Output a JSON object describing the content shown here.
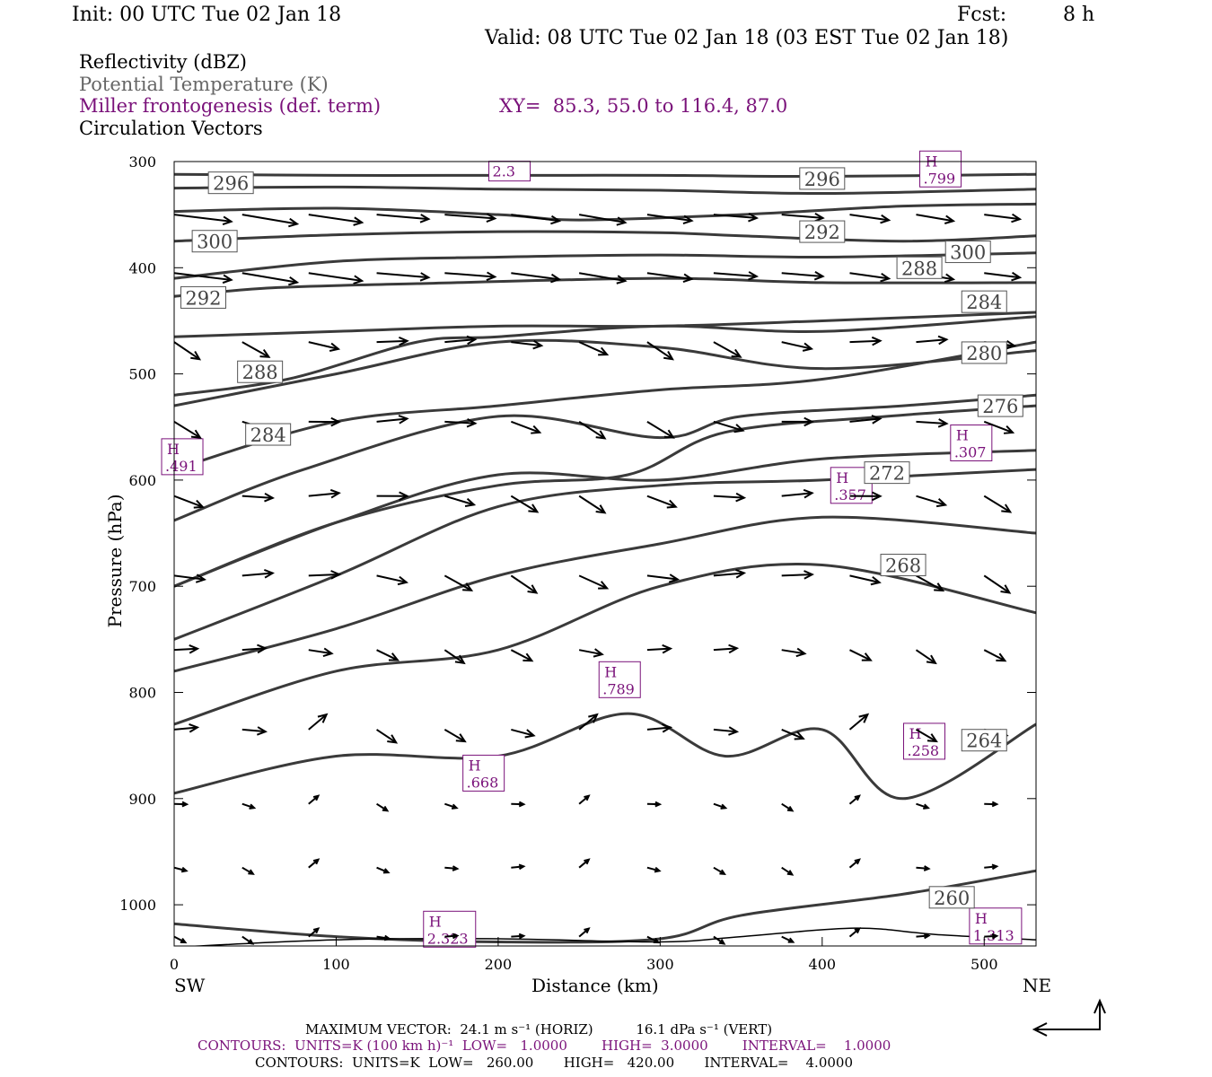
{
  "header": {
    "init": "Init: 00 UTC Tue 02 Jan 18",
    "fcst_label": "Fcst:",
    "fcst_value": "8 h",
    "valid": "Valid: 08 UTC Tue 02 Jan 18 (03 EST Tue 02 Jan 18)"
  },
  "legend": {
    "reflectivity": "Reflectivity (dBZ)",
    "theta": "Potential Temperature (K)",
    "frontogenesis": "Miller frontogenesis (def. term)",
    "xy": "XY=  85.3, 55.0 to 116.4, 87.0",
    "vectors": "Circulation Vectors"
  },
  "axes": {
    "ylabel": "Pressure (hPa)",
    "xlabel": "Distance (km)",
    "left_end": "SW",
    "right_end": "NE"
  },
  "footer": {
    "max_vector": "MAXIMUM VECTOR:  24.1 m s⁻¹ (HORIZ)          16.1 dPa s⁻¹ (VERT)",
    "contours_fronto": "CONTOURS:  UNITS=K (100 km h)⁻¹  LOW=   1.0000        HIGH=  3.0000        INTERVAL=    1.0000",
    "contours_theta": "CONTOURS:  UNITS=K  LOW=   260.00       HIGH=   420.00       INTERVAL=    4.0000"
  },
  "colors": {
    "theta": "#3a3a3a",
    "fronto": "#7a127a",
    "vector": "#000000"
  },
  "chart_data": {
    "type": "line",
    "x_range": [
      0,
      532
    ],
    "y_range": [
      300,
      1040
    ],
    "y_scale": "linear-inverted",
    "x_ticks": [
      0,
      100,
      200,
      300,
      400,
      500
    ],
    "y_ticks": [
      300,
      400,
      500,
      600,
      700,
      800,
      900,
      1000
    ],
    "theta_contours": [
      {
        "level": 300,
        "label_at": [
          [
            25,
            375
          ],
          [
            490,
            385
          ]
        ],
        "points": [
          [
            0,
            312
          ],
          [
            100,
            313
          ],
          [
            200,
            313
          ],
          [
            300,
            313
          ],
          [
            400,
            314
          ],
          [
            532,
            312
          ]
        ]
      },
      {
        "level": 300,
        "points": [
          [
            0,
            325
          ],
          [
            100,
            324
          ],
          [
            200,
            326
          ],
          [
            300,
            327
          ],
          [
            400,
            330
          ],
          [
            532,
            326
          ]
        ]
      },
      {
        "level": 300,
        "points": [
          [
            0,
            347
          ],
          [
            100,
            344
          ],
          [
            200,
            350
          ],
          [
            250,
            355
          ],
          [
            350,
            350
          ],
          [
            450,
            342
          ],
          [
            532,
            340
          ]
        ]
      },
      {
        "level": 300,
        "points": [
          [
            0,
            375
          ],
          [
            100,
            369
          ],
          [
            200,
            366
          ],
          [
            300,
            367
          ],
          [
            350,
            370
          ],
          [
            450,
            375
          ],
          [
            532,
            370
          ]
        ]
      },
      {
        "level": 296,
        "points": [
          [
            0,
            410
          ],
          [
            100,
            394
          ],
          [
            200,
            390
          ],
          [
            300,
            388
          ],
          [
            400,
            390
          ],
          [
            532,
            386
          ]
        ]
      },
      {
        "level": 296,
        "label_at": [
          [
            35,
            320
          ],
          [
            400,
            316
          ]
        ],
        "points": [
          [
            0,
            427
          ],
          [
            60,
            419
          ],
          [
            150,
            415
          ],
          [
            300,
            410
          ],
          [
            400,
            414
          ],
          [
            532,
            414
          ]
        ]
      },
      {
        "level": 292,
        "label_at": [
          [
            400,
            366
          ]
        ],
        "points": [
          [
            0,
            465
          ],
          [
            100,
            460
          ],
          [
            200,
            455
          ],
          [
            300,
            455
          ],
          [
            400,
            450
          ],
          [
            532,
            442
          ]
        ]
      },
      {
        "level": 292,
        "label_at": [
          [
            18,
            428
          ]
        ],
        "points": [
          [
            0,
            520
          ],
          [
            70,
            505
          ],
          [
            150,
            470
          ],
          [
            200,
            465
          ],
          [
            300,
            455
          ],
          [
            400,
            460
          ],
          [
            532,
            446
          ]
        ]
      },
      {
        "level": 288,
        "label_at": [
          [
            460,
            400
          ]
        ],
        "points": [
          [
            0,
            530
          ],
          [
            100,
            500
          ],
          [
            200,
            470
          ],
          [
            300,
            475
          ],
          [
            400,
            495
          ],
          [
            532,
            478
          ]
        ]
      },
      {
        "level": 288,
        "label_at": [
          [
            53,
            498
          ]
        ],
        "points": [
          [
            0,
            590
          ],
          [
            100,
            545
          ],
          [
            200,
            530
          ],
          [
            300,
            515
          ],
          [
            400,
            505
          ],
          [
            532,
            470
          ]
        ]
      },
      {
        "level": 284,
        "label_at": [
          [
            500,
            432
          ]
        ],
        "points": [
          [
            0,
            638
          ],
          [
            80,
            590
          ],
          [
            200,
            540
          ],
          [
            300,
            560
          ],
          [
            350,
            540
          ],
          [
            450,
            530
          ],
          [
            532,
            520
          ]
        ]
      },
      {
        "level": 284,
        "label_at": [
          [
            58,
            557
          ]
        ],
        "points": [
          [
            0,
            700
          ],
          [
            100,
            640
          ],
          [
            200,
            595
          ],
          [
            300,
            600
          ],
          [
            400,
            580
          ],
          [
            532,
            572
          ]
        ]
      },
      {
        "level": 280,
        "label_at": [
          [
            500,
            480
          ]
        ],
        "points": [
          [
            0,
            700
          ],
          [
            100,
            640
          ],
          [
            200,
            605
          ],
          [
            280,
            595
          ],
          [
            340,
            555
          ],
          [
            440,
            540
          ],
          [
            532,
            530
          ]
        ]
      },
      {
        "level": 276,
        "label_at": [
          [
            510,
            530
          ]
        ],
        "points": [
          [
            0,
            750
          ],
          [
            100,
            690
          ],
          [
            200,
            625
          ],
          [
            300,
            605
          ],
          [
            400,
            600
          ],
          [
            532,
            590
          ]
        ]
      },
      {
        "level": 272,
        "label_at": [
          [
            440,
            593
          ]
        ],
        "points": [
          [
            0,
            780
          ],
          [
            100,
            740
          ],
          [
            200,
            690
          ],
          [
            300,
            660
          ],
          [
            400,
            635
          ],
          [
            532,
            650
          ]
        ]
      },
      {
        "level": 268,
        "label_at": [
          [
            450,
            680
          ]
        ],
        "points": [
          [
            0,
            830
          ],
          [
            100,
            780
          ],
          [
            200,
            760
          ],
          [
            300,
            700
          ],
          [
            400,
            680
          ],
          [
            532,
            725
          ]
        ]
      },
      {
        "level": 264,
        "label_at": [
          [
            500,
            845
          ]
        ],
        "points": [
          [
            0,
            895
          ],
          [
            100,
            860
          ],
          [
            200,
            860
          ],
          [
            280,
            820
          ],
          [
            340,
            860
          ],
          [
            400,
            835
          ],
          [
            450,
            900
          ],
          [
            532,
            830
          ]
        ]
      },
      {
        "level": 260,
        "label_at": [
          [
            480,
            993
          ]
        ],
        "points": [
          [
            0,
            1018
          ],
          [
            100,
            1030
          ],
          [
            200,
            1035
          ],
          [
            300,
            1032
          ],
          [
            350,
            1010
          ],
          [
            450,
            990
          ],
          [
            532,
            968
          ]
        ]
      }
    ],
    "fronto_maxima": [
      {
        "label": "H",
        "value": ".491",
        "x": 5,
        "p": 578
      },
      {
        "label": "H",
        "value": ".799",
        "x": 473,
        "p": 307
      },
      {
        "label": "H",
        "value": ".307",
        "x": 492,
        "p": 565
      },
      {
        "label": "H",
        "value": ".357",
        "x": 418,
        "p": 605
      },
      {
        "label": "H",
        "value": ".789",
        "x": 275,
        "p": 788
      },
      {
        "label": "H",
        "value": ".258",
        "x": 463,
        "p": 846
      },
      {
        "label": "H",
        "value": ".668",
        "x": 191,
        "p": 876
      },
      {
        "label": "H",
        "value": "2.323",
        "x": 170,
        "p": 1023
      },
      {
        "label": "H",
        "value": "1.313",
        "x": 507,
        "p": 1020
      },
      {
        "label": "",
        "value": "2.3",
        "x": 207,
        "p": 309
      }
    ],
    "vector_grid": {
      "x": [
        0,
        42,
        83,
        125,
        167,
        208,
        250,
        292,
        333,
        375,
        417,
        458,
        500
      ],
      "p": [
        350,
        405,
        470,
        545,
        615,
        690,
        760,
        835,
        905,
        965,
        1030
      ]
    }
  }
}
